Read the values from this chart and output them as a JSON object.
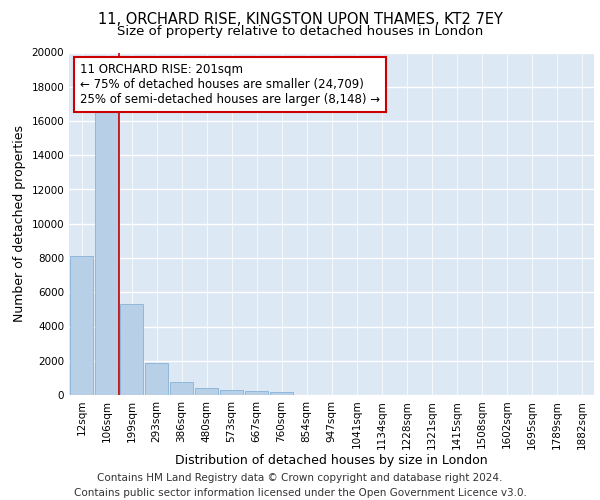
{
  "title_line1": "11, ORCHARD RISE, KINGSTON UPON THAMES, KT2 7EY",
  "title_line2": "Size of property relative to detached houses in London",
  "xlabel": "Distribution of detached houses by size in London",
  "ylabel": "Number of detached properties",
  "categories": [
    "12sqm",
    "106sqm",
    "199sqm",
    "293sqm",
    "386sqm",
    "480sqm",
    "573sqm",
    "667sqm",
    "760sqm",
    "854sqm",
    "947sqm",
    "1041sqm",
    "1134sqm",
    "1228sqm",
    "1321sqm",
    "1415sqm",
    "1508sqm",
    "1602sqm",
    "1695sqm",
    "1789sqm",
    "1882sqm"
  ],
  "values": [
    8100,
    16600,
    5300,
    1850,
    750,
    380,
    280,
    230,
    190,
    0,
    0,
    0,
    0,
    0,
    0,
    0,
    0,
    0,
    0,
    0,
    0
  ],
  "bar_color": "#b8cfe8",
  "bar_edge_color": "#7aaad0",
  "annotation_text": "11 ORCHARD RISE: 201sqm\n← 75% of detached houses are smaller (24,709)\n25% of semi-detached houses are larger (8,148) →",
  "annotation_box_color": "#ffffff",
  "annotation_box_edge_color": "#cc0000",
  "vline_color": "#cc0000",
  "ylim": [
    0,
    20000
  ],
  "yticks": [
    0,
    2000,
    4000,
    6000,
    8000,
    10000,
    12000,
    14000,
    16000,
    18000,
    20000
  ],
  "background_color": "#dde8f5",
  "footer_line1": "Contains HM Land Registry data © Crown copyright and database right 2024.",
  "footer_line2": "Contains public sector information licensed under the Open Government Licence v3.0.",
  "grid_color": "#ffffff",
  "title_fontsize": 10.5,
  "subtitle_fontsize": 9.5,
  "axis_label_fontsize": 9,
  "tick_fontsize": 7.5,
  "annotation_fontsize": 8.5,
  "footer_fontsize": 7.5,
  "vline_bar_index": 2
}
